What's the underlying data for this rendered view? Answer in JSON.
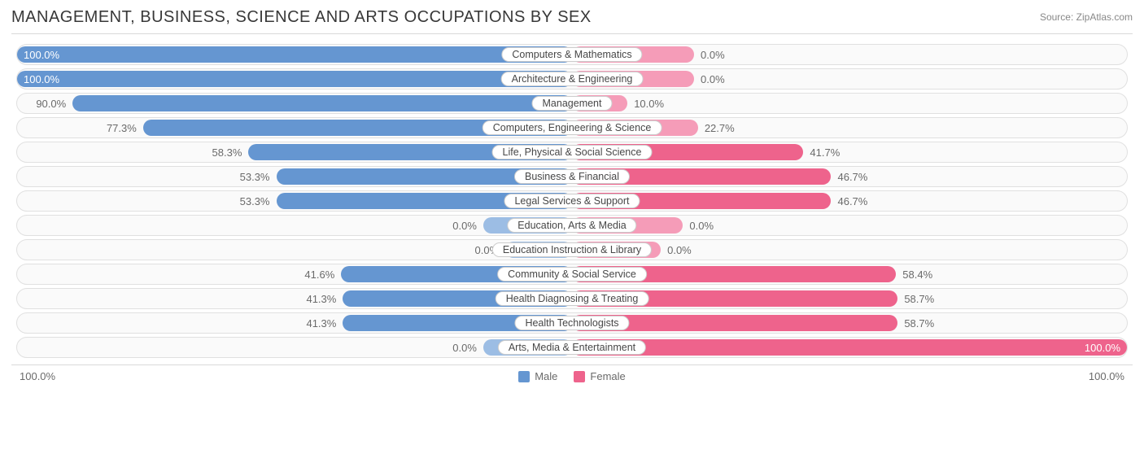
{
  "title": "MANAGEMENT, BUSINESS, SCIENCE AND ARTS OCCUPATIONS BY SEX",
  "source_label": "Source: ZipAtlas.com",
  "colors": {
    "male": "#6596d1",
    "male_light": "#9cbde4",
    "female": "#ee638c",
    "female_light": "#f59cb8",
    "row_bg": "#fafafa",
    "row_border": "#e0e0e0",
    "text": "#6a6a6a"
  },
  "legend": {
    "male": "Male",
    "female": "Female"
  },
  "axis": {
    "left": "100.0%",
    "right": "100.0%"
  },
  "rows": [
    {
      "category": "Computers & Mathematics",
      "male": 100.0,
      "female": 0.0,
      "male_light": false,
      "female_light": true,
      "female_stub": 22
    },
    {
      "category": "Architecture & Engineering",
      "male": 100.0,
      "female": 0.0,
      "male_light": false,
      "female_light": true,
      "female_stub": 22
    },
    {
      "category": "Management",
      "male": 90.0,
      "female": 10.0,
      "male_light": false,
      "female_light": true,
      "female_stub": 34
    },
    {
      "category": "Computers, Engineering & Science",
      "male": 77.3,
      "female": 22.7,
      "male_light": false,
      "female_light": true,
      "female_stub": 0
    },
    {
      "category": "Life, Physical & Social Science",
      "male": 58.3,
      "female": 41.7,
      "male_light": false,
      "female_light": false,
      "female_stub": 0
    },
    {
      "category": "Business & Financial",
      "male": 53.3,
      "female": 46.7,
      "male_light": false,
      "female_light": false,
      "female_stub": 0
    },
    {
      "category": "Legal Services & Support",
      "male": 53.3,
      "female": 46.7,
      "male_light": false,
      "female_light": false,
      "female_stub": 0
    },
    {
      "category": "Education, Arts & Media",
      "male": 0.0,
      "female": 0.0,
      "male_light": true,
      "female_light": true,
      "male_stub": 16,
      "female_stub": 20
    },
    {
      "category": "Education Instruction & Library",
      "male": 0.0,
      "female": 0.0,
      "male_light": true,
      "female_light": true,
      "male_stub": 12,
      "female_stub": 16
    },
    {
      "category": "Community & Social Service",
      "male": 41.6,
      "female": 58.4,
      "male_light": false,
      "female_light": false,
      "female_stub": 0
    },
    {
      "category": "Health Diagnosing & Treating",
      "male": 41.3,
      "female": 58.7,
      "male_light": false,
      "female_light": false,
      "female_stub": 0
    },
    {
      "category": "Health Technologists",
      "male": 41.3,
      "female": 58.7,
      "male_light": false,
      "female_light": false,
      "female_stub": 0
    },
    {
      "category": "Arts, Media & Entertainment",
      "male": 0.0,
      "female": 100.0,
      "male_light": true,
      "female_light": false,
      "male_stub": 16,
      "female_stub": 0
    }
  ]
}
